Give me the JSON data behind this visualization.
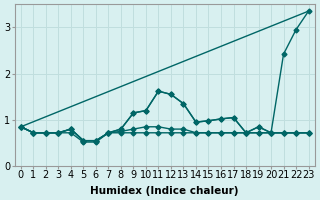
{
  "x": [
    0,
    1,
    2,
    3,
    4,
    5,
    6,
    7,
    8,
    9,
    10,
    11,
    12,
    13,
    14,
    15,
    16,
    17,
    18,
    19,
    20,
    21,
    22,
    23
  ],
  "series": [
    [
      0.85,
      0.72,
      0.72,
      0.72,
      0.72,
      0.52,
      0.52,
      0.72,
      0.72,
      0.72,
      0.72,
      0.72,
      0.72,
      0.72,
      0.72,
      0.72,
      0.72,
      0.72,
      0.72,
      0.72,
      0.72,
      0.72,
      0.72,
      0.72
    ],
    [
      0.85,
      0.72,
      0.72,
      0.72,
      0.8,
      0.55,
      0.55,
      0.72,
      0.75,
      0.8,
      0.85,
      0.85,
      0.8,
      0.8,
      0.72,
      0.72,
      0.72,
      0.72,
      0.72,
      0.72,
      0.72,
      0.72,
      0.72,
      0.72
    ],
    [
      0.85,
      0.72,
      0.72,
      0.72,
      0.8,
      0.55,
      0.55,
      0.72,
      0.8,
      1.15,
      1.2,
      1.62,
      1.55,
      1.35,
      0.95,
      0.98,
      1.02,
      1.05,
      0.72,
      0.85,
      0.72,
      0.72,
      0.72,
      0.72
    ],
    [
      0.85,
      0.72,
      0.72,
      0.72,
      0.8,
      0.55,
      0.55,
      0.72,
      0.8,
      1.15,
      1.2,
      1.62,
      1.55,
      1.35,
      0.95,
      0.98,
      1.02,
      1.05,
      0.72,
      0.85,
      0.72,
      2.42,
      2.95,
      3.35
    ]
  ],
  "line_diagonal": [
    0.85,
    1.0,
    1.15,
    1.25,
    1.38,
    1.5,
    1.62,
    1.75,
    1.88,
    2.0,
    2.12,
    2.25,
    2.38,
    2.5,
    2.62,
    2.75,
    2.88,
    3.0,
    3.1,
    3.15,
    3.2,
    3.25,
    3.3,
    3.35
  ],
  "line_color": "#006666",
  "bg_color": "#d8f0f0",
  "grid_color": "#c0dede",
  "xlabel": "Humidex (Indice chaleur)",
  "xlim": [
    -0.5,
    23.5
  ],
  "ylim": [
    0,
    3.5
  ],
  "yticks": [
    0,
    1,
    2,
    3
  ],
  "xticks": [
    0,
    1,
    2,
    3,
    4,
    5,
    6,
    7,
    8,
    9,
    10,
    11,
    12,
    13,
    14,
    15,
    16,
    17,
    18,
    19,
    20,
    21,
    22,
    23
  ],
  "marker": "D",
  "markersize": 2.5,
  "linewidth": 1.0,
  "fontsize_xlabel": 7.5,
  "fontsize_ticks": 7
}
